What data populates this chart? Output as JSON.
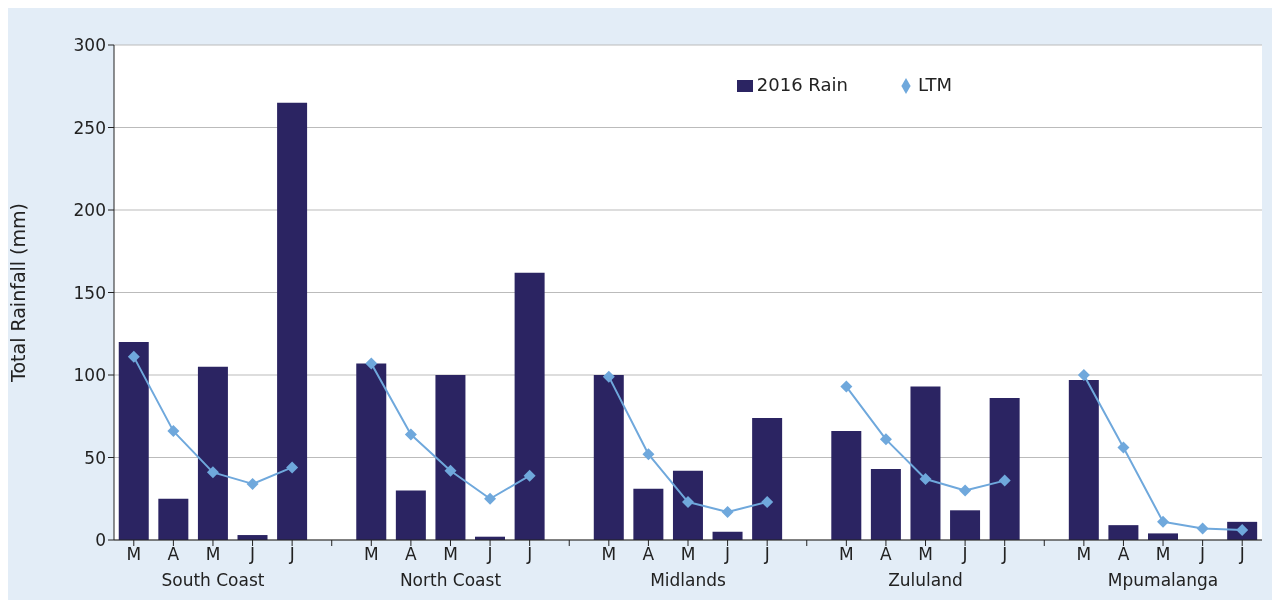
{
  "chart_data": {
    "type": "bar",
    "ylabel": "Total Rainfall (mm)",
    "categories": [
      "M",
      "A",
      "M",
      "J",
      "J",
      null,
      "M",
      "A",
      "M",
      "J",
      "J",
      null,
      "M",
      "A",
      "M",
      "J",
      "J",
      null,
      "M",
      "A",
      "M",
      "J",
      "J",
      null,
      "M",
      "A",
      "M",
      "J",
      "J"
    ],
    "series": [
      {
        "name": "2016 Rain",
        "color": "#2b2462",
        "values": [
          120,
          25,
          105,
          3,
          265,
          null,
          107,
          30,
          100,
          2,
          162,
          null,
          100,
          31,
          42,
          5,
          74,
          null,
          66,
          43,
          93,
          18,
          86,
          null,
          97,
          9,
          4,
          null,
          11
        ]
      },
      {
        "name": "LTM",
        "type": "line",
        "color": "#6fa8dc",
        "values": [
          111,
          66,
          41,
          34,
          44,
          null,
          107,
          64,
          42,
          25,
          39,
          null,
          99,
          52,
          23,
          17,
          23,
          null,
          93,
          61,
          37,
          30,
          36,
          null,
          100,
          56,
          11,
          7,
          6
        ]
      }
    ],
    "annotations": [
      "South Coast",
      "North Coast",
      "Midlands",
      "Zululand",
      "Mpumalanga"
    ],
    "ylim": [
      0,
      300
    ],
    "yticks": [
      0,
      50,
      100,
      150,
      200,
      250,
      300
    ],
    "grid": "y",
    "legend": "top right",
    "marker": "diamond",
    "line_style": "solid"
  }
}
